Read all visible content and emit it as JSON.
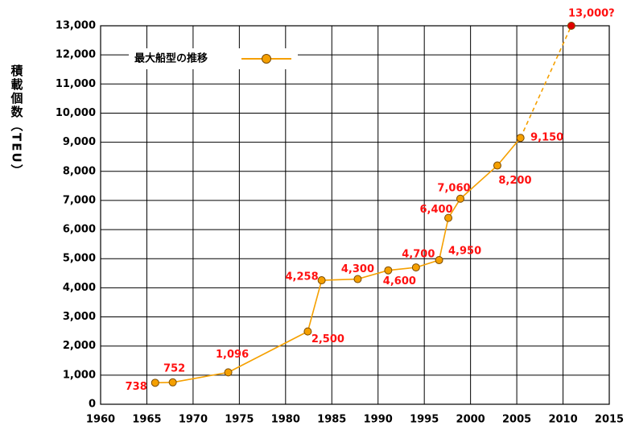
{
  "chart_data": {
    "type": "line",
    "y_label": "積載個数（TEU）",
    "xlim": [
      1960,
      2015
    ],
    "xticks": [
      1960,
      1965,
      1970,
      1975,
      1980,
      1985,
      1990,
      1995,
      2000,
      2005,
      2010,
      2015
    ],
    "ylim": [
      0,
      13000
    ],
    "yticks": [
      0,
      {
        "value": 1000,
        "label": "1,000"
      },
      {
        "value": 2000,
        "label": "2,000"
      },
      {
        "value": 3000,
        "label": "3,000"
      },
      {
        "value": 4000,
        "label": "4,000"
      },
      {
        "value": 5000,
        "label": "5,000"
      },
      {
        "value": 6000,
        "label": "6,000"
      },
      {
        "value": 7000,
        "label": "7,000"
      },
      {
        "value": 8000,
        "label": "8,000"
      },
      {
        "value": 9000,
        "label": "9,000"
      },
      {
        "value": 10000,
        "label": "10,000"
      },
      {
        "value": 11000,
        "label": "11,000"
      },
      {
        "value": 12000,
        "label": "12,000"
      },
      {
        "value": 13000,
        "label": "13,000"
      }
    ],
    "grid": true,
    "legend": "top-left",
    "series": [
      {
        "name": "最大船型の推移",
        "color": "#f5a000",
        "x": [
          1965.9,
          1967.8,
          1973.8,
          1982.4,
          1983.9,
          1987.8,
          1991.1,
          1994.1,
          1996.6,
          1997.6,
          1998.9,
          2002.9,
          2005.4,
          2010.9
        ],
        "values": [
          738,
          752,
          1096,
          2500,
          4258,
          4300,
          4600,
          4700,
          4950,
          6400,
          7060,
          8200,
          9150,
          13000
        ],
        "value_labels": [
          "738",
          "752",
          "1,096",
          "2,500",
          "4,258",
          "4,300",
          "4,600",
          "4,700",
          "4,950",
          "6,400",
          "7,060",
          "8,200",
          "9,150",
          "13,000?"
        ],
        "point_colors": [
          "#f5a000",
          "#f5a000",
          "#f5a000",
          "#f5a000",
          "#f5a000",
          "#f5a000",
          "#f5a000",
          "#f5a000",
          "#f5a000",
          "#f5a000",
          "#f5a000",
          "#f5a000",
          "#f5a000",
          "#e00000"
        ],
        "linestyles": [
          "solid",
          "solid",
          "solid",
          "solid",
          "solid",
          "solid",
          "solid",
          "solid",
          "solid",
          "solid",
          "solid",
          "solid",
          "solid",
          "dashed"
        ],
        "label_color": "#ff1010"
      }
    ]
  }
}
